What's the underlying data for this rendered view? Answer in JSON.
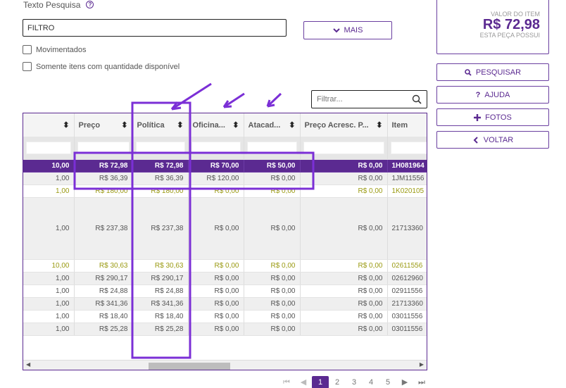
{
  "search": {
    "label": "Texto Pesquisa",
    "help_glyph": "?",
    "value": "FILTRO"
  },
  "buttons": {
    "mais": "MAIS",
    "pesquisar": "PESQUISAR",
    "ajuda": "AJUDA",
    "fotos": "FOTOS",
    "voltar": "VOLTAR"
  },
  "checks": {
    "movimentados": "Movimentados",
    "somente": "Somente itens com quantidade disponível"
  },
  "value_box": {
    "caption_top": "VALOR DO ITEM",
    "value": "R$ 72,98",
    "caption_bottom": "ESTA PEÇA POSSUI"
  },
  "grid": {
    "filter_placeholder": "Filtrar...",
    "columns": [
      "",
      "Preço",
      "Política",
      "Oficina...",
      "Atacad...",
      "Preço Acresc. P...",
      "Item"
    ],
    "rows": [
      {
        "qty": "10,00",
        "preco": "R$ 72,98",
        "politica": "R$ 72,98",
        "oficina": "R$ 70,00",
        "atacado": "R$ 50,00",
        "acresc": "R$ 0,00",
        "item": "1H081964"
      },
      {
        "qty": "1,00",
        "preco": "R$ 36,39",
        "politica": "R$ 36,39",
        "oficina": "R$ 120,00",
        "atacado": "R$ 0,00",
        "acresc": "R$ 0,00",
        "item": "1JM11556"
      },
      {
        "qty": "1,00",
        "preco": "R$ 180,00",
        "politica": "R$ 180,00",
        "oficina": "R$ 0,00",
        "atacado": "R$ 0,00",
        "acresc": "R$ 0,00",
        "item": "1K020105"
      },
      {
        "qty": "1,00",
        "preco": "R$ 237,38",
        "politica": "R$ 237,38",
        "oficina": "R$ 0,00",
        "atacado": "R$ 0,00",
        "acresc": "R$ 0,00",
        "item": "21713360"
      },
      {
        "qty": "10,00",
        "preco": "R$ 30,63",
        "politica": "R$ 30,63",
        "oficina": "R$ 0,00",
        "atacado": "R$ 0,00",
        "acresc": "R$ 0,00",
        "item": "02611556"
      },
      {
        "qty": "1,00",
        "preco": "R$ 290,17",
        "politica": "R$ 290,17",
        "oficina": "R$ 0,00",
        "atacado": "R$ 0,00",
        "acresc": "R$ 0,00",
        "item": "02612960"
      },
      {
        "qty": "1,00",
        "preco": "R$ 24,88",
        "politica": "R$ 24,88",
        "oficina": "R$ 0,00",
        "atacado": "R$ 0,00",
        "acresc": "R$ 0,00",
        "item": "02911556"
      },
      {
        "qty": "1,00",
        "preco": "R$ 341,36",
        "politica": "R$ 341,36",
        "oficina": "R$ 0,00",
        "atacado": "R$ 0,00",
        "acresc": "R$ 0,00",
        "item": "21713360"
      },
      {
        "qty": "1,00",
        "preco": "R$ 18,40",
        "politica": "R$ 18,40",
        "oficina": "R$ 0,00",
        "atacado": "R$ 0,00",
        "acresc": "R$ 0,00",
        "item": "03011556"
      },
      {
        "qty": "1,00",
        "preco": "R$ 25,28",
        "politica": "R$ 25,28",
        "oficina": "R$ 0,00",
        "atacado": "R$ 0,00",
        "acresc": "R$ 0,00",
        "item": "03011556"
      }
    ]
  },
  "pager": {
    "first": "⏮",
    "prev": "◀",
    "pages": [
      "1",
      "2",
      "3",
      "4",
      "5"
    ],
    "next": "▶",
    "last": "⏭"
  },
  "colors": {
    "accent": "#5b2a91",
    "olive": "#9a9a12",
    "annotation": "#7b2fd6"
  },
  "icons": [
    "help-icon",
    "chevron-down-icon",
    "search-icon",
    "question-icon",
    "plus-icon",
    "chevron-left-icon",
    "sort-icon"
  ]
}
